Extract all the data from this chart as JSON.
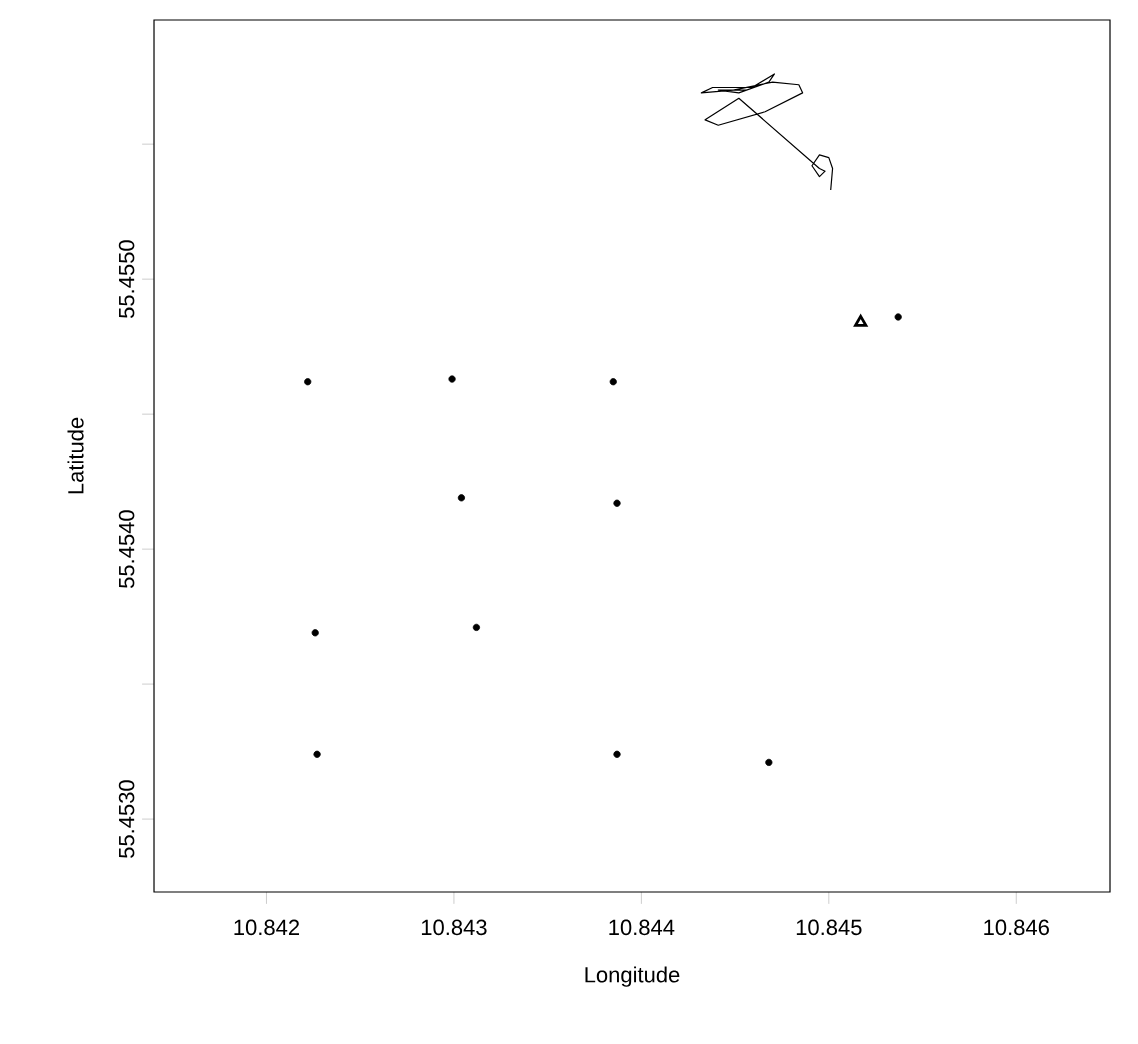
{
  "chart_data": {
    "type": "scatter",
    "xlabel": "Longitude",
    "ylabel": "Latitude",
    "xlim": [
      10.8414,
      10.8465
    ],
    "ylim": [
      55.45273,
      55.45596
    ],
    "xticks": [
      10.842,
      10.843,
      10.844,
      10.845,
      10.846
    ],
    "yticks": [
      {
        "value": 55.453,
        "label": "55.4530"
      },
      {
        "value": 55.4535,
        "label": null
      },
      {
        "value": 55.454,
        "label": "55.4540"
      },
      {
        "value": 55.4545,
        "label": null
      },
      {
        "value": 55.455,
        "label": "55.4550"
      },
      {
        "value": 55.4555,
        "label": null
      }
    ],
    "series": [
      {
        "marker": "circle",
        "color": "#000000",
        "x": [
          10.84222,
          10.84299,
          10.84385,
          10.84304,
          10.84387,
          10.84226,
          10.84312,
          10.84227,
          10.84387,
          10.84468,
          10.84537
        ],
        "values": [
          55.45462,
          55.45463,
          55.45462,
          55.45419,
          55.45417,
          55.45369,
          55.45371,
          55.45324,
          55.45324,
          55.45321,
          55.45486
        ]
      },
      {
        "marker": "triangle",
        "color": "#000000",
        "x": [
          10.84517
        ],
        "values": [
          55.45484
        ]
      },
      {
        "type": "line",
        "marker": "none",
        "color": "#000000",
        "x": [
          10.84501,
          10.84502,
          10.845,
          10.84495,
          10.84491,
          10.84495,
          10.84498,
          10.84495,
          10.84452,
          10.84434,
          10.84441,
          10.84466,
          10.84486,
          10.84484,
          10.8447,
          10.84449,
          10.84432,
          10.84438,
          10.84459,
          10.84471,
          10.84468,
          10.84452,
          10.84441,
          10.84456
        ],
        "values": [
          55.45533,
          55.45541,
          55.45545,
          55.45546,
          55.45542,
          55.45538,
          55.4554,
          55.45541,
          55.45567,
          55.45559,
          55.45557,
          55.45562,
          55.45569,
          55.45572,
          55.45573,
          55.4557,
          55.45569,
          55.45571,
          55.45571,
          55.45576,
          55.45573,
          55.45569,
          55.4557,
          55.4557
        ]
      }
    ]
  }
}
